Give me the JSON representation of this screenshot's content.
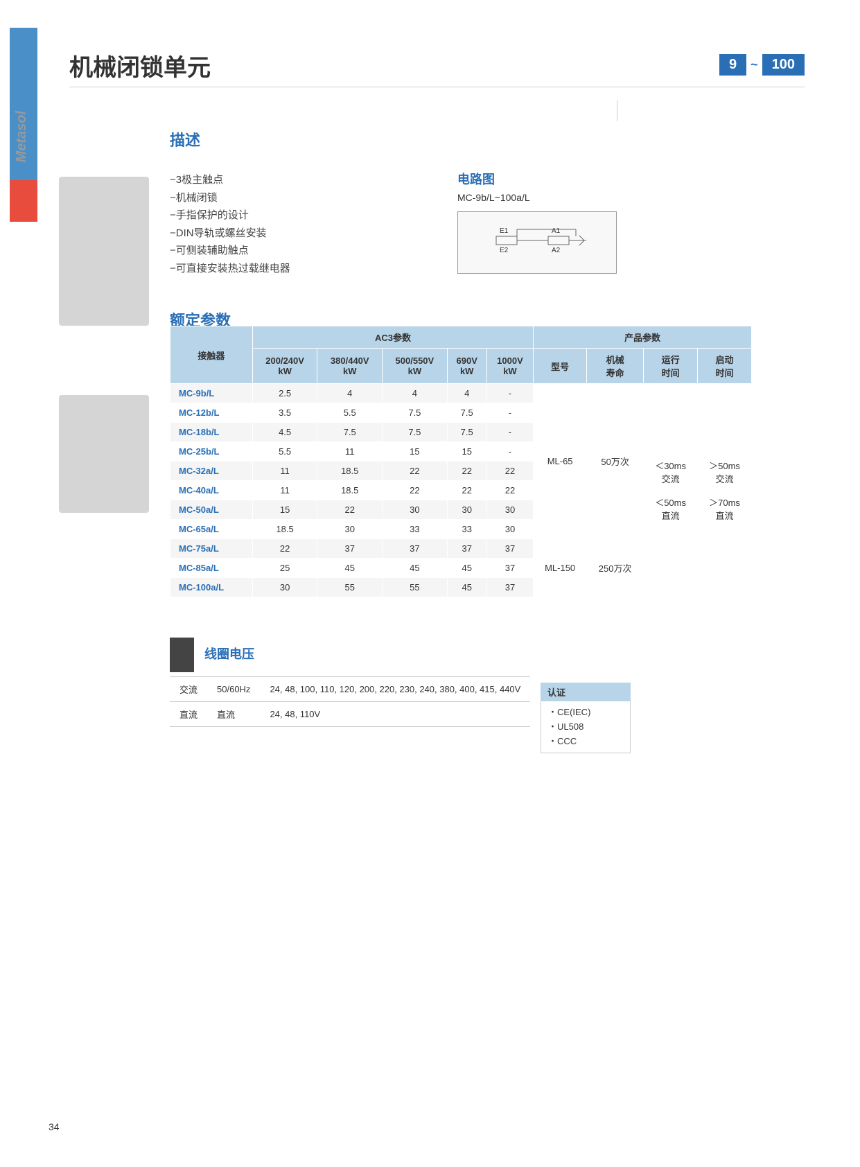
{
  "brand": "Metasol",
  "title": "机械闭锁单元",
  "range": {
    "from": "9",
    "to": "100"
  },
  "description": {
    "heading": "描述",
    "items": [
      "−3极主触点",
      "−机械闭锁",
      "−手指保护的设计",
      "−DIN导轨或螺丝安装",
      "−可侧装辅助触点",
      "−可直接安装热过载继电器"
    ]
  },
  "circuit": {
    "heading": "电路图",
    "subtitle": "MC-9b/L~100a/L",
    "labels": {
      "e1": "E1",
      "e2": "E2",
      "a1": "A1",
      "a2": "A2"
    }
  },
  "ratings": {
    "heading": "额定参数",
    "header_group1": "AC3参数",
    "header_group2": "产品参数",
    "columns": [
      "接触器",
      "200/240V\nkW",
      "380/440V\nkW",
      "500/550V\nkW",
      "690V\nkW",
      "1000V\nkW",
      "型号",
      "机械\n寿命",
      "运行\n时间",
      "启动\n时间"
    ],
    "rows": [
      [
        "MC-9b/L",
        "2.5",
        "4",
        "4",
        "4",
        "-"
      ],
      [
        "MC-12b/L",
        "3.5",
        "5.5",
        "7.5",
        "7.5",
        "-"
      ],
      [
        "MC-18b/L",
        "4.5",
        "7.5",
        "7.5",
        "7.5",
        "-"
      ],
      [
        "MC-25b/L",
        "5.5",
        "11",
        "15",
        "15",
        "-"
      ],
      [
        "MC-32a/L",
        "11",
        "18.5",
        "22",
        "22",
        "22"
      ],
      [
        "MC-40a/L",
        "11",
        "18.5",
        "22",
        "22",
        "22"
      ],
      [
        "MC-50a/L",
        "15",
        "22",
        "30",
        "30",
        "30"
      ],
      [
        "MC-65a/L",
        "18.5",
        "30",
        "33",
        "33",
        "30"
      ],
      [
        "MC-75a/L",
        "22",
        "37",
        "37",
        "37",
        "37"
      ],
      [
        "MC-85a/L",
        "25",
        "45",
        "45",
        "45",
        "37"
      ],
      [
        "MC-100a/L",
        "30",
        "55",
        "55",
        "45",
        "37"
      ]
    ],
    "group1": {
      "model": "ML-65",
      "life": "50万次"
    },
    "group2": {
      "model": "ML-150",
      "life": "250万次"
    },
    "runtime": "＜30ms\n交流\n\n＜50ms\n直流",
    "starttime": "＞50ms\n交流\n\n＞70ms\n直流"
  },
  "coil": {
    "heading": "线圈电压",
    "rows": [
      [
        "交流",
        "50/60Hz",
        "24, 48, 100, 110, 120, 200, 220, 230, 240, 380, 400, 415, 440V"
      ],
      [
        "直流",
        "直流",
        "24, 48, 110V"
      ]
    ]
  },
  "cert": {
    "heading": "认证",
    "items": [
      "CE(IEC)",
      "UL508",
      "CCC"
    ]
  },
  "page_number": "34"
}
